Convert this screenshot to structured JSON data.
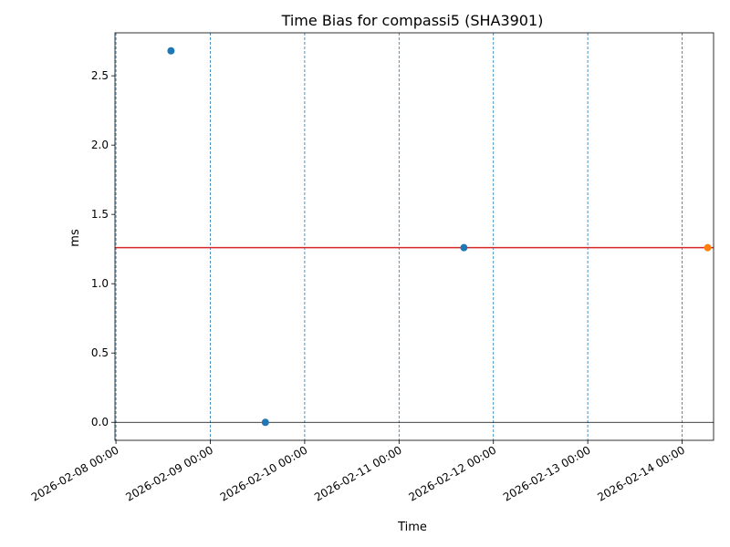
{
  "chart_data": {
    "type": "scatter",
    "title": "Time Bias for compassi5 (SHA3901)",
    "xlabel": "Time",
    "ylabel": "ms",
    "xlim": [
      "2026-02-07 23:45",
      "2026-02-14 08:00"
    ],
    "ylim": [
      -0.13,
      2.81
    ],
    "x_ticks": [
      "2026-02-08 00:00",
      "2026-02-09 00:00",
      "2026-02-10 00:00",
      "2026-02-11 00:00",
      "2026-02-12 00:00",
      "2026-02-13 00:00",
      "2026-02-14 00:00"
    ],
    "y_ticks": [
      "0.0",
      "0.5",
      "1.0",
      "1.5",
      "2.0",
      "2.5"
    ],
    "vertical_gridlines": "dashed, blue, at each day",
    "series": [
      {
        "color": "#1f77b4",
        "points": [
          {
            "x": "2026-02-08 14:00",
            "y": 2.68
          },
          {
            "x": "2026-02-09 14:00",
            "y": 0.0
          },
          {
            "x": "2026-02-11 16:30",
            "y": 1.26
          }
        ]
      },
      {
        "color": "#ff7f0e",
        "points": [
          {
            "x": "2026-02-14 06:30",
            "y": 1.26
          }
        ]
      }
    ],
    "reference_lines": [
      {
        "orientation": "horizontal",
        "y": 1.26,
        "color": "#d62728"
      },
      {
        "orientation": "horizontal",
        "y": 0.0,
        "color": "#000000"
      }
    ]
  }
}
